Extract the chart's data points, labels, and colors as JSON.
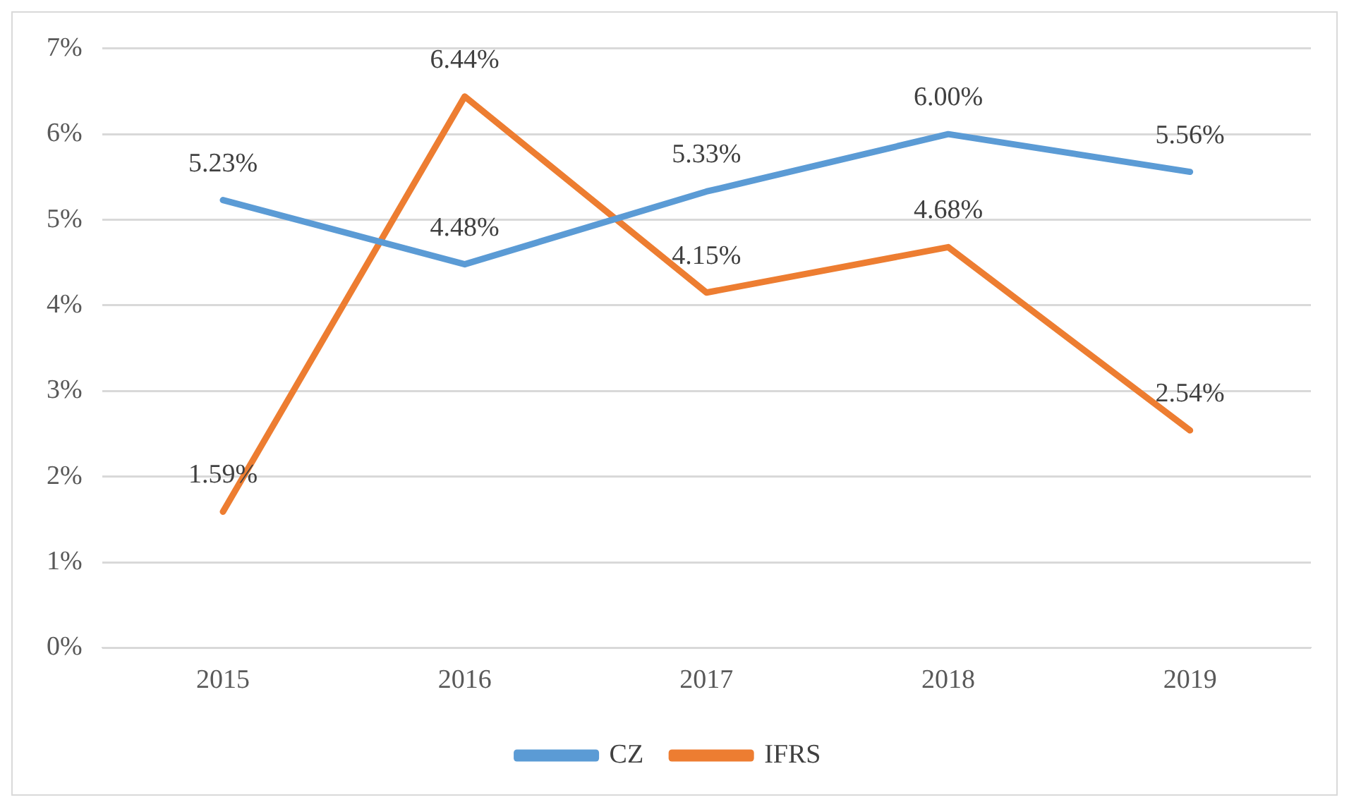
{
  "chart_data": {
    "type": "line",
    "categories": [
      "2015",
      "2016",
      "2017",
      "2018",
      "2019"
    ],
    "series": [
      {
        "name": "CZ",
        "color": "#5b9bd5",
        "values": [
          5.23,
          4.48,
          5.33,
          6.0,
          5.56
        ],
        "value_labels": [
          "5.23%",
          "4.48%",
          "5.33%",
          "6.00%",
          "5.56%"
        ]
      },
      {
        "name": "IFRS",
        "color": "#ed7d31",
        "values": [
          1.59,
          6.44,
          4.15,
          4.68,
          2.54
        ],
        "value_labels": [
          "1.59%",
          "6.44%",
          "4.15%",
          "4.68%",
          "2.54%"
        ]
      }
    ],
    "ylim": [
      0,
      7
    ],
    "yticks": [
      {
        "value": 0,
        "label": "0%"
      },
      {
        "value": 1,
        "label": "1%"
      },
      {
        "value": 2,
        "label": "2%"
      },
      {
        "value": 3,
        "label": "3%"
      },
      {
        "value": 4,
        "label": "4%"
      },
      {
        "value": 5,
        "label": "5%"
      },
      {
        "value": 6,
        "label": "6%"
      },
      {
        "value": 7,
        "label": "7%"
      }
    ],
    "grid": "y",
    "legend": "bottom",
    "marker": "none",
    "line_style": "solid"
  }
}
